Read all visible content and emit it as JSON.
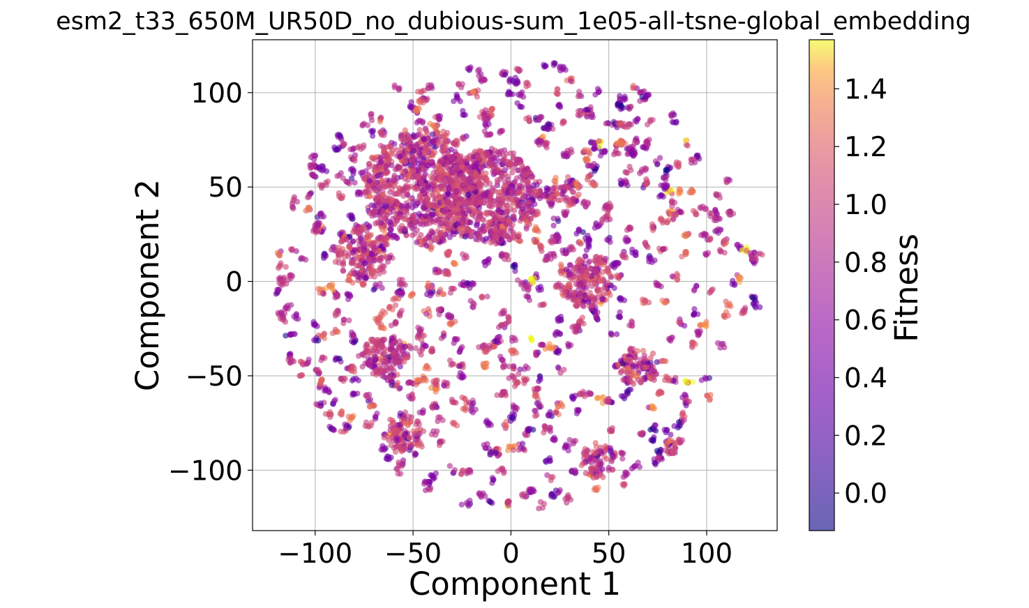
{
  "chart_data": {
    "type": "scatter",
    "title": "esm2_t33_650M_UR50D_no_dubious-sum_1e05-all-tsne-global_embedding",
    "xlabel": "Component 1",
    "ylabel": "Component 2",
    "xlim": [
      -132,
      136
    ],
    "ylim": [
      -132,
      128
    ],
    "xticks": [
      -100,
      -50,
      0,
      50,
      100
    ],
    "yticks": [
      -100,
      -50,
      0,
      50,
      100
    ],
    "xtick_labels": [
      "−100",
      "−50",
      "0",
      "50",
      "100"
    ],
    "ytick_labels": [
      "−100",
      "−50",
      "0",
      "50",
      "100"
    ],
    "grid": true,
    "colormap": "plasma",
    "point_alpha": 0.6,
    "colorbar": {
      "label": "Fitness",
      "range": [
        -0.13,
        1.57
      ],
      "ticks": [
        0.0,
        0.2,
        0.4,
        0.6,
        0.8,
        1.0,
        1.2,
        1.4
      ],
      "tick_labels": [
        "0.0",
        "0.2",
        "0.4",
        "0.6",
        "0.8",
        "1.0",
        "1.2",
        "1.4"
      ]
    },
    "dense_regions": [
      {
        "x": -45,
        "y": 50,
        "r": 30,
        "fitness_mean": 1.05
      },
      {
        "x": -10,
        "y": 45,
        "r": 25,
        "fitness_mean": 1.0
      },
      {
        "x": -75,
        "y": 15,
        "r": 14,
        "fitness_mean": 1.05
      },
      {
        "x": 38,
        "y": 0,
        "r": 14,
        "fitness_mean": 1.05
      },
      {
        "x": 28,
        "y": 48,
        "r": 8,
        "fitness_mean": 1.05
      },
      {
        "x": -55,
        "y": -80,
        "r": 10,
        "fitness_mean": 1.05
      },
      {
        "x": 45,
        "y": -95,
        "r": 9,
        "fitness_mean": 1.05
      },
      {
        "x": -65,
        "y": -40,
        "r": 12,
        "fitness_mean": 1.0
      },
      {
        "x": 65,
        "y": -45,
        "r": 10,
        "fitness_mean": 1.05
      }
    ],
    "sparse_region": {
      "center": [
        3,
        0
      ],
      "radius": 124,
      "fitness_mean": 0.95,
      "fitness_spread": 0.25
    }
  }
}
